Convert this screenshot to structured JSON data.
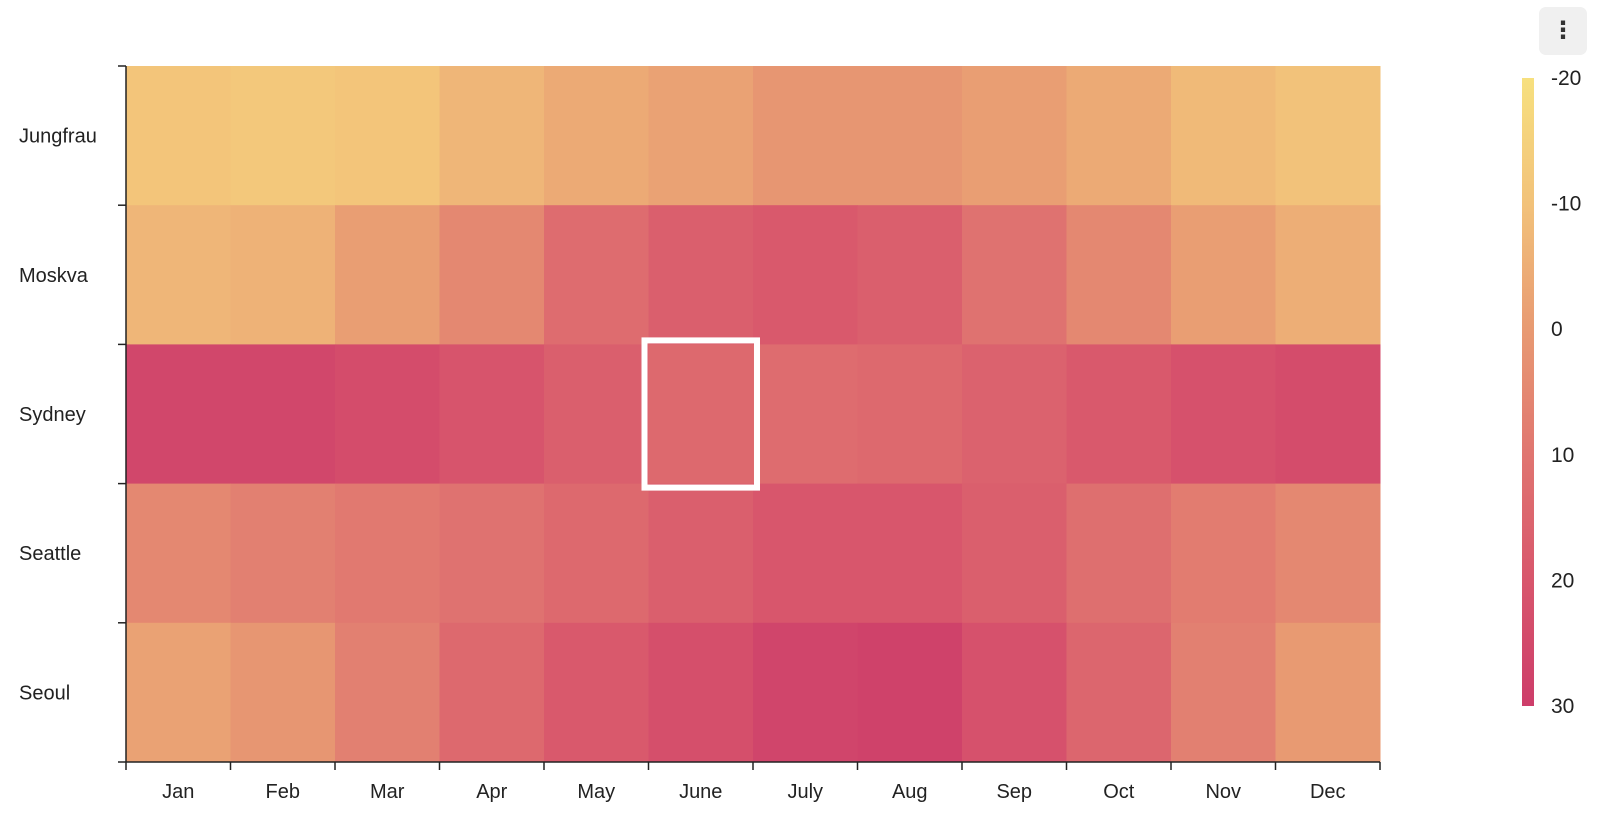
{
  "menu": {
    "icon": "vertical-ellipsis-icon",
    "glyph": "⋮"
  },
  "chart_data": {
    "type": "heatmap",
    "title": "",
    "xlabel": "",
    "ylabel": "",
    "x": [
      "Jan",
      "Feb",
      "Mar",
      "Apr",
      "May",
      "June",
      "July",
      "Aug",
      "Sep",
      "Oct",
      "Nov",
      "Dec"
    ],
    "y": [
      "Jungfrau",
      "Moskva",
      "Sydney",
      "Seattle",
      "Seoul"
    ],
    "values": [
      [
        -11,
        -12,
        -11,
        -7,
        -4,
        -2,
        1,
        1,
        -1,
        -4,
        -8,
        -10
      ],
      [
        -7,
        -6,
        -1,
        5,
        13,
        17,
        19,
        17,
        11,
        5,
        -1,
        -5
      ],
      [
        26,
        26,
        24,
        21,
        17,
        14,
        13,
        14,
        16,
        19,
        22,
        24
      ],
      [
        5,
        7,
        9,
        11,
        14,
        17,
        20,
        20,
        17,
        12,
        8,
        5
      ],
      [
        -2,
        1,
        7,
        14,
        19,
        23,
        27,
        28,
        22,
        15,
        7,
        0
      ]
    ],
    "highlight": {
      "x": "June",
      "y": "Sydney"
    },
    "colorbar": {
      "min": -20,
      "max": 30,
      "ticks": [
        "-20",
        "-10",
        "0",
        "10",
        "20",
        "30"
      ],
      "colors": [
        "#f7e07e",
        "#f2c27a",
        "#e89a72",
        "#e07570",
        "#d8566c",
        "#cd3d6a"
      ],
      "placement": "right"
    }
  }
}
